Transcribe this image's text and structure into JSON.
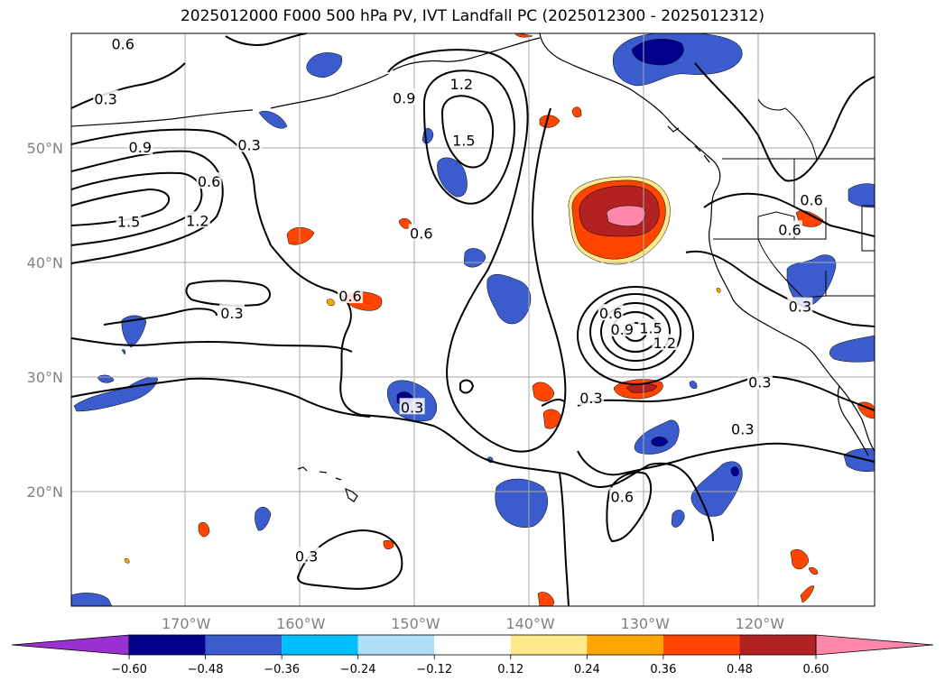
{
  "title": "2025012000 F000 500 hPa PV, IVT Landfall PC (2025012300 - 2025012312)",
  "map": {
    "lon_range": [
      -180,
      -110
    ],
    "lat_range": [
      10,
      60
    ],
    "lon_ticks": [
      -170,
      -160,
      -150,
      -140,
      -130,
      -120
    ],
    "lon_tick_labels": [
      "170°W",
      "160°W",
      "150°W",
      "140°W",
      "130°W",
      "120°W"
    ],
    "lat_ticks": [
      20,
      30,
      40,
      50
    ],
    "lat_tick_labels": [
      "20°N",
      "30°N",
      "40°N",
      "50°N"
    ],
    "grid": true
  },
  "colorbar": {
    "levels": [
      -0.6,
      -0.48,
      -0.36,
      -0.24,
      -0.12,
      0.12,
      0.24,
      0.36,
      0.48,
      0.6
    ],
    "level_labels": [
      "−0.60",
      "−0.48",
      "−0.36",
      "−0.24",
      "−0.12",
      "0.12",
      "0.24",
      "0.36",
      "0.48",
      "0.60"
    ],
    "colors": [
      "#9b30d0",
      "#00008b",
      "#3a5ccc",
      "#00bfff",
      "#b0e0f8",
      "#ffffff",
      "#ffe98a",
      "#ffa500",
      "#ff4500",
      "#b22222",
      "#ff88aa"
    ],
    "extend": "both"
  },
  "contour_labels": [
    {
      "text": "0.6",
      "lon": -175.5,
      "lat": 59
    },
    {
      "text": "0.3",
      "lon": -177,
      "lat": 54.2
    },
    {
      "text": "0.9",
      "lon": -174,
      "lat": 50
    },
    {
      "text": "0.6",
      "lon": -168,
      "lat": 47
    },
    {
      "text": "0.3",
      "lon": -164.5,
      "lat": 50.2
    },
    {
      "text": "1.5",
      "lon": -175,
      "lat": 43.5
    },
    {
      "text": "1.2",
      "lon": -169,
      "lat": 43.6
    },
    {
      "text": "0.9",
      "lon": -151,
      "lat": 54.3
    },
    {
      "text": "1.2",
      "lon": -146,
      "lat": 55.5
    },
    {
      "text": "1.5",
      "lon": -145.8,
      "lat": 50.6
    },
    {
      "text": "0.6",
      "lon": -155.7,
      "lat": 37
    },
    {
      "text": "0.3",
      "lon": -166,
      "lat": 35.5
    },
    {
      "text": "0.6",
      "lon": -149.5,
      "lat": 42.5
    },
    {
      "text": "0.6",
      "lon": -133,
      "lat": 35.5
    },
    {
      "text": "0.9",
      "lon": -132,
      "lat": 34.1
    },
    {
      "text": "1.5",
      "lon": -129.5,
      "lat": 34.2
    },
    {
      "text": "1.2",
      "lon": -128.3,
      "lat": 32.9
    },
    {
      "text": "0.3",
      "lon": -150.3,
      "lat": 27.3
    },
    {
      "text": "0.3",
      "lon": -134.7,
      "lat": 28.1
    },
    {
      "text": "0.6",
      "lon": -132,
      "lat": 19.5
    },
    {
      "text": "0.3",
      "lon": -120,
      "lat": 29.5
    },
    {
      "text": "0.3",
      "lon": -121.5,
      "lat": 25.4
    },
    {
      "text": "0.6",
      "lon": -115.5,
      "lat": 45.4
    },
    {
      "text": "0.6",
      "lon": -117.4,
      "lat": 42.8
    },
    {
      "text": "0.3",
      "lon": -116.5,
      "lat": 36.1
    },
    {
      "text": "0.3",
      "lon": -159.5,
      "lat": 14.3
    }
  ],
  "regions": [
    {
      "name": "neg-anomaly-alaska-gulf",
      "color": "#3a5ccc",
      "core": "#00008b"
    },
    {
      "name": "pos-anomaly-offshore-40n",
      "color": "#b22222",
      "core": "#ff88aa"
    },
    {
      "name": "pos-anomaly-cutoff-low",
      "color": "#b22222"
    }
  ]
}
